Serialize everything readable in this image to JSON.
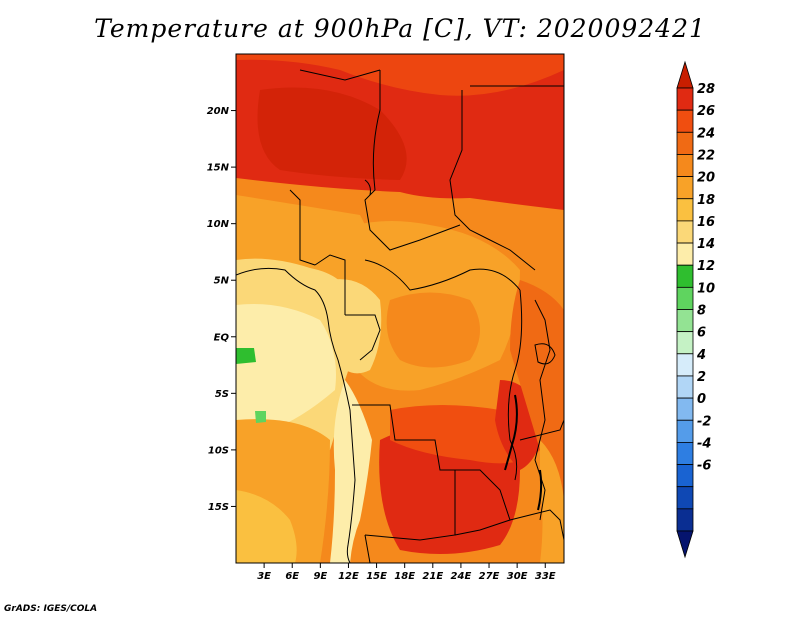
{
  "title": "Temperature at 900hPa [C], VT: 2020092421",
  "credit": "GrADS: IGES/COLA",
  "map": {
    "lon_range": [
      0,
      35
    ],
    "lat_range": [
      -20,
      25
    ],
    "lon_labels": [
      "3E",
      "6E",
      "9E",
      "12E",
      "15E",
      "18E",
      "21E",
      "24E",
      "27E",
      "30E",
      "33E"
    ],
    "lat_labels": [
      "20N",
      "15N",
      "10N",
      "5N",
      "EQ",
      "5S",
      "10S",
      "15S"
    ]
  },
  "colorbar": {
    "labels": [
      "28",
      "26",
      "24",
      "22",
      "20",
      "18",
      "16",
      "14",
      "12",
      "10",
      "8",
      "6",
      "4",
      "2",
      "0",
      "-2",
      "-4",
      "-6"
    ],
    "colors": [
      "#c81e00",
      "#e02a12",
      "#f04e10",
      "#f06a14",
      "#f5891c",
      "#f8a228",
      "#fac040",
      "#fbd878",
      "#fdedaa",
      "#2fbe2f",
      "#5fd45f",
      "#93e393",
      "#c5f2c5",
      "#d6ecfa",
      "#b1d6f6",
      "#82b9f0",
      "#549cea",
      "#2e7ee2",
      "#1963d2",
      "#0f48b4",
      "#0a2e92",
      "#05146e"
    ]
  }
}
